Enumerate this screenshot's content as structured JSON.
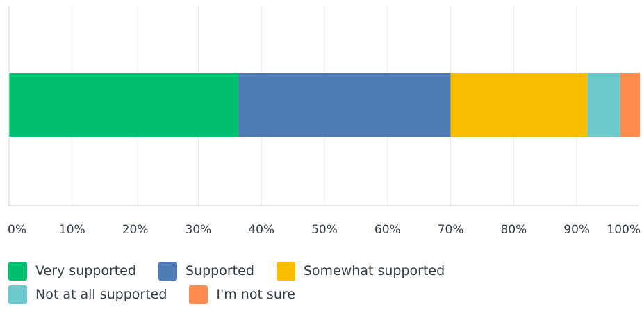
{
  "chart_data": {
    "type": "bar",
    "orientation": "horizontal",
    "stacked": true,
    "categories": [
      ""
    ],
    "series": [
      {
        "name": "Very supported",
        "values": [
          36.4
        ],
        "color": "#00bf6f"
      },
      {
        "name": "Supported",
        "values": [
          33.6
        ],
        "color": "#507cb6"
      },
      {
        "name": "Somewhat supported",
        "values": [
          21.7
        ],
        "color": "#f9be00"
      },
      {
        "name": "Not at all supported",
        "values": [
          5.2
        ],
        "color": "#6bc8cd"
      },
      {
        "name": "I'm not sure",
        "values": [
          3.1
        ],
        "color": "#ff8b4f"
      }
    ],
    "xlim": [
      0,
      100
    ],
    "xticks": [
      "0%",
      "10%",
      "20%",
      "30%",
      "40%",
      "50%",
      "60%",
      "70%",
      "80%",
      "90%",
      "100%"
    ],
    "grid": true,
    "legend_position": "bottom"
  },
  "legend": {
    "rows": [
      [
        {
          "label": "Very supported",
          "color": "#00bf6f"
        },
        {
          "label": "Supported",
          "color": "#507cb6"
        },
        {
          "label": "Somewhat supported",
          "color": "#f9be00"
        }
      ],
      [
        {
          "label": "Not at all supported",
          "color": "#6bc8cd"
        },
        {
          "label": "I'm not sure",
          "color": "#ff8b4f"
        }
      ]
    ]
  }
}
